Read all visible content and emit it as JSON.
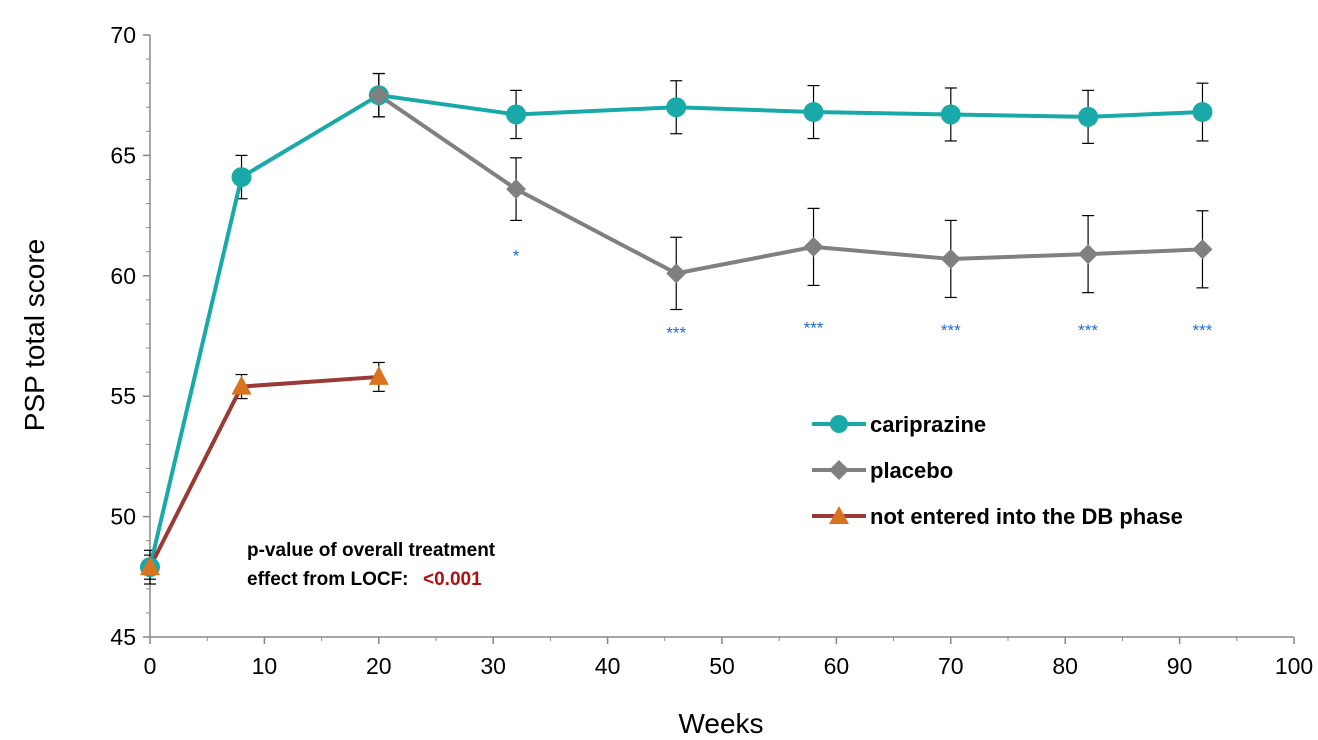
{
  "chart_data": {
    "type": "line",
    "title": "",
    "xlabel": "Weeks",
    "ylabel": "PSP total score",
    "xlim": [
      0,
      100
    ],
    "ylim": [
      45,
      70
    ],
    "xticks": [
      0,
      10,
      20,
      30,
      40,
      50,
      60,
      70,
      80,
      90,
      100
    ],
    "yticks": [
      45,
      50,
      55,
      60,
      65,
      70
    ],
    "xtick_labels": [
      "0",
      "10",
      "20",
      "30",
      "40",
      "50",
      "60",
      "70",
      "80",
      "90",
      "100"
    ],
    "ytick_labels": [
      "45",
      "50",
      "55",
      "60",
      "65",
      "70"
    ],
    "grid": false,
    "legend_position": "right-middle",
    "series": [
      {
        "name": "cariprazine",
        "color": "#1aa9a9",
        "marker": "circle",
        "x": [
          0,
          8,
          20,
          32,
          46,
          58,
          70,
          82,
          92
        ],
        "y": [
          47.9,
          64.1,
          67.5,
          66.7,
          67.0,
          66.8,
          66.7,
          66.6,
          66.8
        ],
        "err": [
          0.7,
          0.9,
          0.9,
          1.0,
          1.1,
          1.1,
          1.1,
          1.1,
          1.2
        ]
      },
      {
        "name": "placebo",
        "color": "#808080",
        "marker": "diamond",
        "x": [
          20,
          32,
          46,
          58,
          70,
          82,
          92
        ],
        "y": [
          67.5,
          63.6,
          60.1,
          61.2,
          60.7,
          60.9,
          61.1
        ],
        "err": [
          0.9,
          1.3,
          1.5,
          1.6,
          1.6,
          1.6,
          1.6
        ]
      },
      {
        "name": "not entered into the DB phase",
        "color": "#9b3a34",
        "marker": "triangle",
        "marker_color": "#d9731f",
        "x": [
          0,
          8,
          20
        ],
        "y": [
          47.9,
          55.4,
          55.8
        ],
        "err": [
          0.5,
          0.5,
          0.6
        ]
      }
    ],
    "annotations": [
      {
        "text": "*",
        "x": 32,
        "y": 60.6
      },
      {
        "text": "***",
        "x": 46,
        "y": 57.4
      },
      {
        "text": "***",
        "x": 58,
        "y": 57.6
      },
      {
        "text": "***",
        "x": 70,
        "y": 57.5
      },
      {
        "text": "***",
        "x": 82,
        "y": 57.5
      },
      {
        "text": "***",
        "x": 92,
        "y": 57.5
      }
    ],
    "note": {
      "line1": "p-value of overall treatment",
      "line2": "effect from LOCF:",
      "value": "<0.001"
    }
  }
}
